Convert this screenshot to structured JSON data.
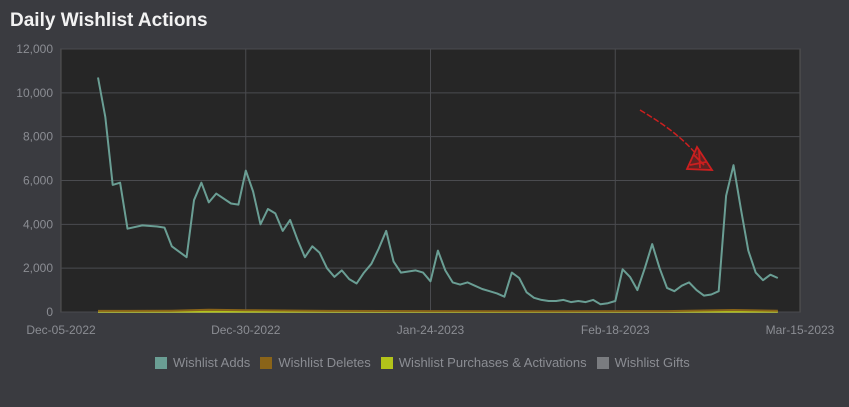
{
  "header": {
    "title": "Daily Wishlist Actions"
  },
  "colors": {
    "background": "#3a3b40",
    "plot_bg": "#262626",
    "grid": "#4a4b4f",
    "adds": "#6a9e94",
    "deletes": "#8a6419",
    "purchases": "#b2c31a",
    "gifts": "#7a7c80",
    "annotation": "#cc1f1f"
  },
  "chart_data": {
    "type": "line",
    "title": "Daily Wishlist Actions",
    "xlabel": "",
    "ylabel": "",
    "x_ticks": [
      "Dec-05-2022",
      "Dec-30-2022",
      "Jan-24-2023",
      "Feb-18-2023",
      "Mar-15-2023"
    ],
    "x_range": [
      "2022-12-05",
      "2023-03-15"
    ],
    "y_ticks": [
      "0",
      "2,000",
      "4,000",
      "6,000",
      "8,000",
      "10,000",
      "12,000"
    ],
    "ylim": [
      0,
      12000
    ],
    "grid": true,
    "legend_position": "bottom",
    "series": [
      {
        "name": "Wishlist Adds",
        "color_key": "adds",
        "points": [
          [
            "2022-12-10",
            10700
          ],
          [
            "2022-12-11",
            8900
          ],
          [
            "2022-12-12",
            5800
          ],
          [
            "2022-12-13",
            5900
          ],
          [
            "2022-12-14",
            3800
          ],
          [
            "2022-12-16",
            3950
          ],
          [
            "2022-12-18",
            3900
          ],
          [
            "2022-12-19",
            3850
          ],
          [
            "2022-12-20",
            3000
          ],
          [
            "2022-12-22",
            2500
          ],
          [
            "2022-12-23",
            5100
          ],
          [
            "2022-12-24",
            5900
          ],
          [
            "2022-12-25",
            5000
          ],
          [
            "2022-12-26",
            5400
          ],
          [
            "2022-12-28",
            4950
          ],
          [
            "2022-12-29",
            4900
          ],
          [
            "2022-12-30",
            6450
          ],
          [
            "2022-12-31",
            5500
          ],
          [
            "2023-01-01",
            4000
          ],
          [
            "2023-01-02",
            4700
          ],
          [
            "2023-01-03",
            4500
          ],
          [
            "2023-01-04",
            3700
          ],
          [
            "2023-01-05",
            4200
          ],
          [
            "2023-01-06",
            3300
          ],
          [
            "2023-01-07",
            2500
          ],
          [
            "2023-01-08",
            3000
          ],
          [
            "2023-01-09",
            2700
          ],
          [
            "2023-01-10",
            2000
          ],
          [
            "2023-01-11",
            1600
          ],
          [
            "2023-01-12",
            1900
          ],
          [
            "2023-01-13",
            1500
          ],
          [
            "2023-01-14",
            1300
          ],
          [
            "2023-01-15",
            1800
          ],
          [
            "2023-01-16",
            2200
          ],
          [
            "2023-01-17",
            2900
          ],
          [
            "2023-01-18",
            3700
          ],
          [
            "2023-01-19",
            2300
          ],
          [
            "2023-01-20",
            1800
          ],
          [
            "2023-01-21",
            1850
          ],
          [
            "2023-01-22",
            1900
          ],
          [
            "2023-01-23",
            1800
          ],
          [
            "2023-01-24",
            1400
          ],
          [
            "2023-01-25",
            2800
          ],
          [
            "2023-01-26",
            1900
          ],
          [
            "2023-01-27",
            1350
          ],
          [
            "2023-01-28",
            1250
          ],
          [
            "2023-01-29",
            1350
          ],
          [
            "2023-01-30",
            1200
          ],
          [
            "2023-01-31",
            1050
          ],
          [
            "2023-02-01",
            950
          ],
          [
            "2023-02-02",
            850
          ],
          [
            "2023-02-03",
            700
          ],
          [
            "2023-02-04",
            1800
          ],
          [
            "2023-02-05",
            1550
          ],
          [
            "2023-02-06",
            900
          ],
          [
            "2023-02-07",
            650
          ],
          [
            "2023-02-08",
            550
          ],
          [
            "2023-02-09",
            500
          ],
          [
            "2023-02-10",
            500
          ],
          [
            "2023-02-11",
            550
          ],
          [
            "2023-02-12",
            450
          ],
          [
            "2023-02-13",
            500
          ],
          [
            "2023-02-14",
            450
          ],
          [
            "2023-02-15",
            550
          ],
          [
            "2023-02-16",
            350
          ],
          [
            "2023-02-17",
            400
          ],
          [
            "2023-02-18",
            500
          ],
          [
            "2023-02-19",
            1950
          ],
          [
            "2023-02-20",
            1600
          ],
          [
            "2023-02-21",
            1000
          ],
          [
            "2023-02-22",
            2000
          ],
          [
            "2023-02-23",
            3100
          ],
          [
            "2023-02-24",
            2000
          ],
          [
            "2023-02-25",
            1100
          ],
          [
            "2023-02-26",
            950
          ],
          [
            "2023-02-27",
            1200
          ],
          [
            "2023-02-28",
            1350
          ],
          [
            "2023-03-01",
            1000
          ],
          [
            "2023-03-02",
            750
          ],
          [
            "2023-03-03",
            800
          ],
          [
            "2023-03-04",
            950
          ],
          [
            "2023-03-05",
            5300
          ],
          [
            "2023-03-06",
            6700
          ],
          [
            "2023-03-07",
            4700
          ],
          [
            "2023-03-08",
            2800
          ],
          [
            "2023-03-09",
            1800
          ],
          [
            "2023-03-10",
            1450
          ],
          [
            "2023-03-11",
            1700
          ],
          [
            "2023-03-12",
            1550
          ]
        ]
      },
      {
        "name": "Wishlist Deletes",
        "color_key": "deletes",
        "points": [
          [
            "2022-12-10",
            50
          ],
          [
            "2022-12-20",
            60
          ],
          [
            "2022-12-25",
            100
          ],
          [
            "2022-12-30",
            80
          ],
          [
            "2023-01-10",
            50
          ],
          [
            "2023-01-24",
            40
          ],
          [
            "2023-02-10",
            30
          ],
          [
            "2023-02-25",
            40
          ],
          [
            "2023-03-06",
            90
          ],
          [
            "2023-03-12",
            60
          ]
        ]
      },
      {
        "name": "Wishlist Purchases & Activations",
        "color_key": "purchases",
        "points": [
          [
            "2022-12-10",
            20
          ],
          [
            "2023-01-01",
            20
          ],
          [
            "2023-02-01",
            15
          ],
          [
            "2023-03-12",
            20
          ]
        ]
      },
      {
        "name": "Wishlist Gifts",
        "color_key": "gifts",
        "points": [
          [
            "2022-12-10",
            0
          ],
          [
            "2023-03-12",
            0
          ]
        ]
      }
    ]
  },
  "legend": {
    "items": [
      {
        "label": "Wishlist Adds",
        "color_key": "adds"
      },
      {
        "label": "Wishlist Deletes",
        "color_key": "deletes"
      },
      {
        "label": "Wishlist Purchases & Activations",
        "color_key": "purchases"
      },
      {
        "label": "Wishlist Gifts",
        "color_key": "gifts"
      }
    ]
  }
}
